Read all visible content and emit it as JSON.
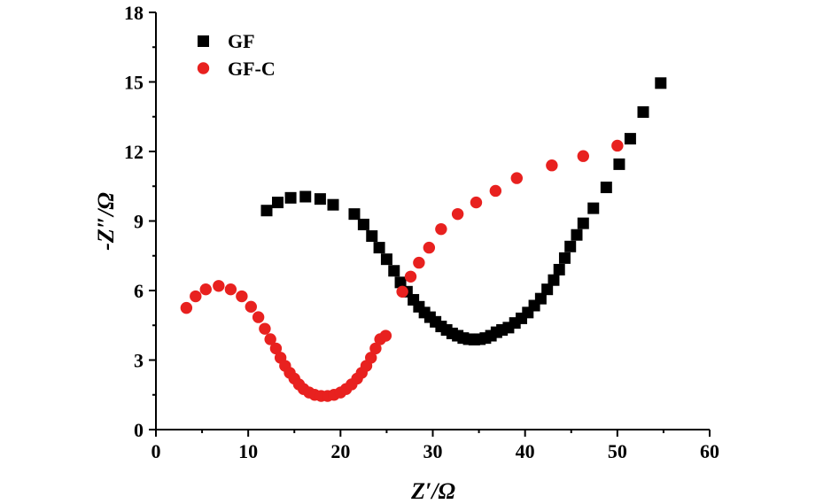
{
  "chart_data": {
    "type": "scatter",
    "title": "",
    "xlabel": "Z′/Ω",
    "ylabel": "-Z″/Ω",
    "xlim": [
      0,
      60
    ],
    "ylim": [
      0,
      18
    ],
    "xticks": [
      0,
      10,
      20,
      30,
      40,
      50,
      60
    ],
    "yticks": [
      0,
      3,
      6,
      9,
      12,
      15,
      18
    ],
    "xtick_labels": [
      "0",
      "10",
      "20",
      "30",
      "40",
      "50",
      "60"
    ],
    "ytick_labels": [
      "0",
      "3",
      "6",
      "9",
      "12",
      "15",
      "18"
    ],
    "grid": false,
    "legend_position": "top-left",
    "series": [
      {
        "name": "GF",
        "marker": "square",
        "color": "#000000",
        "points": [
          [
            12.0,
            9.45
          ],
          [
            13.2,
            9.8
          ],
          [
            14.6,
            10.0
          ],
          [
            16.2,
            10.05
          ],
          [
            17.8,
            9.95
          ],
          [
            19.2,
            9.7
          ],
          [
            21.5,
            9.3
          ],
          [
            22.5,
            8.85
          ],
          [
            23.4,
            8.35
          ],
          [
            24.2,
            7.85
          ],
          [
            25.0,
            7.35
          ],
          [
            25.8,
            6.85
          ],
          [
            26.5,
            6.35
          ],
          [
            27.2,
            5.95
          ],
          [
            27.9,
            5.6
          ],
          [
            28.5,
            5.3
          ],
          [
            29.1,
            5.05
          ],
          [
            29.7,
            4.85
          ],
          [
            30.3,
            4.65
          ],
          [
            30.9,
            4.45
          ],
          [
            31.5,
            4.3
          ],
          [
            32.1,
            4.15
          ],
          [
            32.7,
            4.05
          ],
          [
            33.3,
            3.95
          ],
          [
            33.9,
            3.9
          ],
          [
            34.5,
            3.88
          ],
          [
            35.1,
            3.9
          ],
          [
            35.7,
            3.95
          ],
          [
            36.3,
            4.05
          ],
          [
            36.9,
            4.2
          ],
          [
            37.5,
            4.3
          ],
          [
            38.2,
            4.4
          ],
          [
            38.9,
            4.6
          ],
          [
            39.6,
            4.8
          ],
          [
            40.3,
            5.05
          ],
          [
            41.0,
            5.35
          ],
          [
            41.7,
            5.65
          ],
          [
            42.4,
            6.05
          ],
          [
            43.1,
            6.45
          ],
          [
            43.7,
            6.9
          ],
          [
            44.3,
            7.4
          ],
          [
            44.9,
            7.9
          ],
          [
            45.6,
            8.4
          ],
          [
            46.3,
            8.9
          ],
          [
            47.4,
            9.55
          ],
          [
            48.8,
            10.45
          ],
          [
            50.2,
            11.45
          ],
          [
            51.4,
            12.55
          ],
          [
            52.8,
            13.7
          ],
          [
            54.7,
            14.95
          ]
        ]
      },
      {
        "name": "GF-C",
        "marker": "circle",
        "color": "#e8211f",
        "points": [
          [
            3.3,
            5.25
          ],
          [
            4.3,
            5.75
          ],
          [
            5.4,
            6.05
          ],
          [
            6.8,
            6.2
          ],
          [
            8.1,
            6.05
          ],
          [
            9.3,
            5.75
          ],
          [
            10.3,
            5.3
          ],
          [
            11.1,
            4.85
          ],
          [
            11.8,
            4.35
          ],
          [
            12.4,
            3.9
          ],
          [
            13.0,
            3.5
          ],
          [
            13.5,
            3.1
          ],
          [
            14.0,
            2.75
          ],
          [
            14.5,
            2.45
          ],
          [
            15.0,
            2.2
          ],
          [
            15.5,
            1.95
          ],
          [
            16.0,
            1.75
          ],
          [
            16.6,
            1.6
          ],
          [
            17.2,
            1.5
          ],
          [
            17.9,
            1.45
          ],
          [
            18.6,
            1.45
          ],
          [
            19.3,
            1.5
          ],
          [
            20.0,
            1.6
          ],
          [
            20.6,
            1.75
          ],
          [
            21.2,
            1.95
          ],
          [
            21.8,
            2.2
          ],
          [
            22.3,
            2.45
          ],
          [
            22.8,
            2.75
          ],
          [
            23.3,
            3.1
          ],
          [
            23.8,
            3.5
          ],
          [
            24.3,
            3.9
          ],
          [
            24.9,
            4.05
          ],
          [
            26.7,
            5.95
          ],
          [
            27.6,
            6.6
          ],
          [
            28.5,
            7.2
          ],
          [
            29.6,
            7.85
          ],
          [
            30.9,
            8.65
          ],
          [
            32.7,
            9.3
          ],
          [
            34.7,
            9.8
          ],
          [
            36.8,
            10.3
          ],
          [
            39.1,
            10.85
          ],
          [
            42.9,
            11.4
          ],
          [
            46.3,
            11.8
          ],
          [
            50.0,
            12.25
          ]
        ]
      }
    ]
  }
}
